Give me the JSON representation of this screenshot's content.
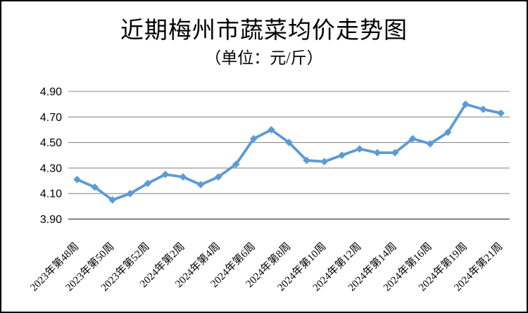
{
  "title": "近期梅州市蔬菜均价走势图",
  "subtitle": "（单位：元/斤）",
  "chart_data": {
    "type": "line",
    "title": "近期梅州市蔬菜均价走势图",
    "subtitle": "（单位：元/斤）",
    "unit": "元/斤",
    "x_tick_labels": [
      "2023年第48周",
      "2023年第50周",
      "2023年第52周",
      "2024年第2周",
      "2024年第4周",
      "2024年第6周",
      "2024年第8周",
      "2024年第10周",
      "2024年第12周",
      "2024年第14周",
      "2024年第16周",
      "2024年第19周",
      "2024年第21周"
    ],
    "x_label_every": 2,
    "values": [
      4.21,
      4.15,
      4.05,
      4.1,
      4.18,
      4.25,
      4.23,
      4.17,
      4.23,
      4.33,
      4.53,
      4.6,
      4.5,
      4.36,
      4.35,
      4.4,
      4.45,
      4.42,
      4.42,
      4.53,
      4.49,
      4.58,
      4.8,
      4.76,
      4.73
    ],
    "yticks": [
      "4.90",
      "4.70",
      "4.50",
      "4.30",
      "4.10",
      "3.90"
    ],
    "ylim": [
      3.9,
      4.9
    ],
    "grid": true,
    "legend": "none",
    "marker": "diamond",
    "colors": {
      "line": "#5B9BD5",
      "gridline": "#8C8C8C",
      "axis": "#595959",
      "text": "#000000"
    }
  }
}
